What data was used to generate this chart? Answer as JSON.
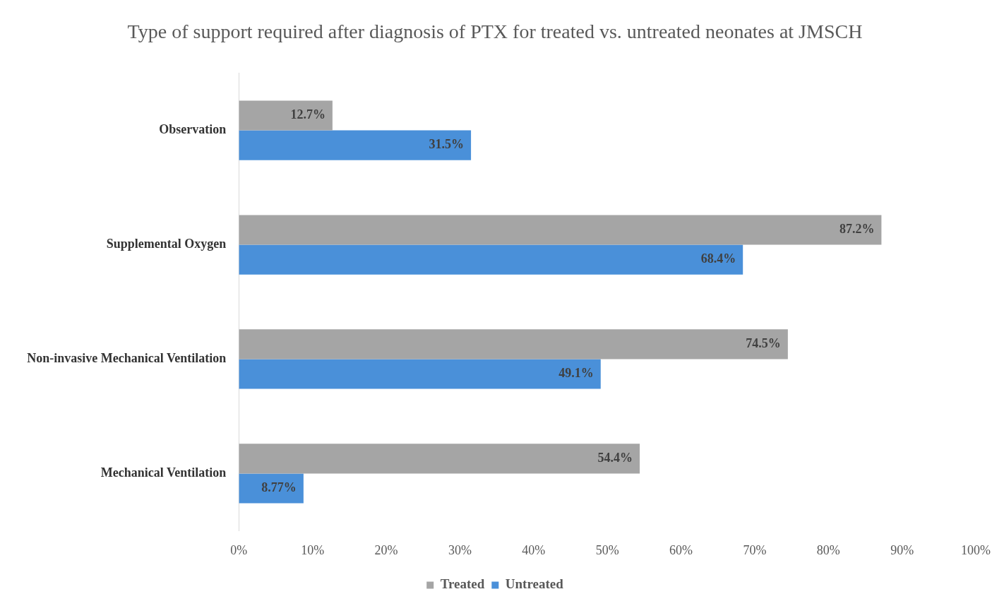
{
  "chart_data": {
    "type": "bar",
    "orientation": "horizontal",
    "title": "Type of support required after diagnosis of PTX for treated vs. untreated neonates at JMSCH",
    "categories": [
      "Observation",
      "Supplemental Oxygen",
      "Non-invasive Mechanical Ventilation",
      "Mechanical Ventilation"
    ],
    "series": [
      {
        "name": "Treated",
        "color": "#a5a5a5",
        "values": [
          12.7,
          87.2,
          74.5,
          54.4
        ],
        "value_labels": [
          "12.7%",
          "87.2%",
          "74.5%",
          "54.4%"
        ]
      },
      {
        "name": "Untreated",
        "color": "#4a90d9",
        "values": [
          31.5,
          68.4,
          49.1,
          8.77
        ],
        "value_labels": [
          "31.5%",
          "68.4%",
          "49.1%",
          "8.77%"
        ]
      }
    ],
    "xlim": [
      0,
      100
    ],
    "xticks": [
      {
        "value": 0,
        "label": "0%"
      },
      {
        "value": 10,
        "label": "10%"
      },
      {
        "value": 20,
        "label": "20%"
      },
      {
        "value": 30,
        "label": "30%"
      },
      {
        "value": 40,
        "label": "40%"
      },
      {
        "value": 50,
        "label": "50%"
      },
      {
        "value": 60,
        "label": "60%"
      },
      {
        "value": 70,
        "label": "70%"
      },
      {
        "value": 80,
        "label": "80%"
      },
      {
        "value": 90,
        "label": "90%"
      },
      {
        "value": 100,
        "label": "100%"
      }
    ],
    "grid": false,
    "legend": "bottom"
  }
}
